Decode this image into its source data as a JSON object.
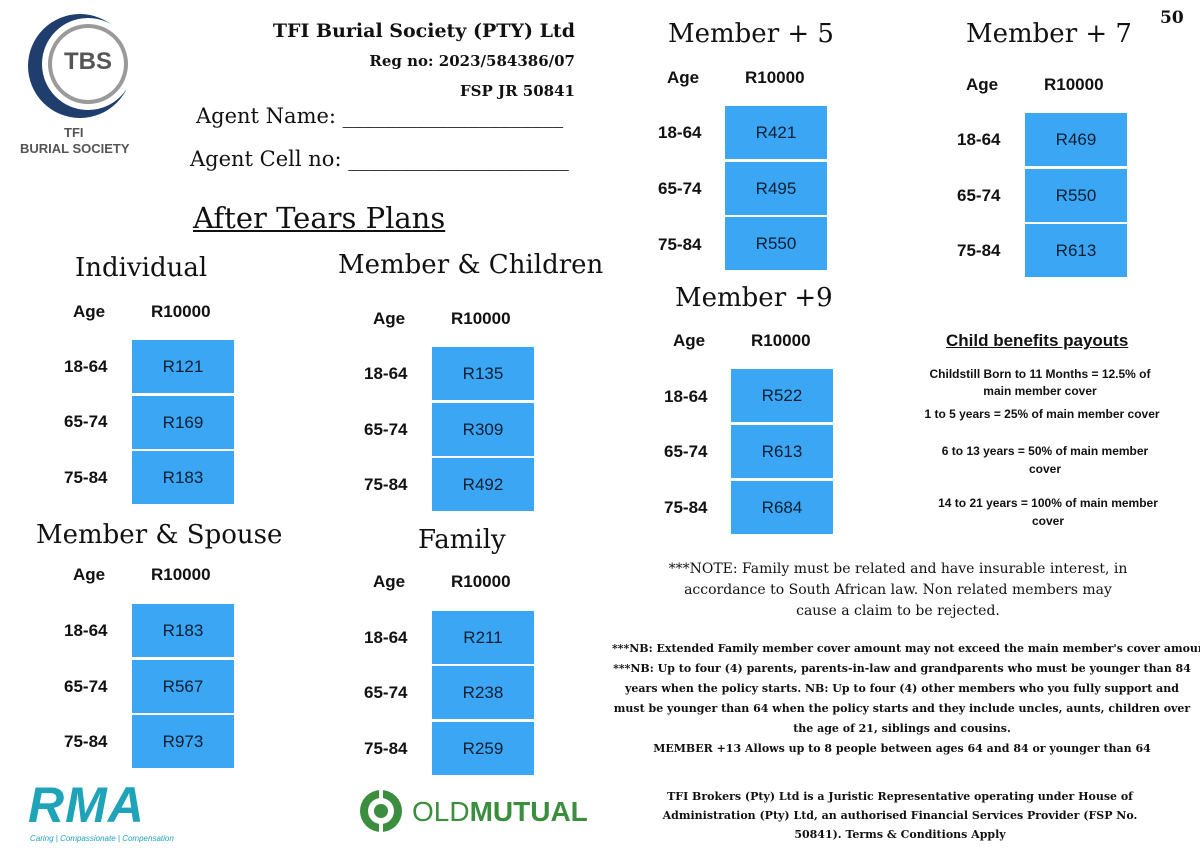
{
  "page_number": "50",
  "logo": {
    "initials": "TBS",
    "line1": "TFI",
    "line2": "BURIAL SOCIETY"
  },
  "header": {
    "company": "TFI Burial Society (PTY) Ltd",
    "reg": "Reg no: 2023/584386/07",
    "fsp": "FSP JR 50841",
    "agent_name": "Agent Name: _____________________",
    "agent_cell": "Agent Cell no: _____________________"
  },
  "main_title": "After Tears Plans",
  "plans": {
    "individual": {
      "title": "Individual",
      "age_header": "Age",
      "amount_header": "R10000",
      "rows": [
        {
          "age": "18-64",
          "price": "R121"
        },
        {
          "age": "65-74",
          "price": "R169"
        },
        {
          "age": "75-84",
          "price": "R183"
        }
      ]
    },
    "member_children": {
      "title": "Member & Children",
      "age_header": "Age",
      "amount_header": "R10000",
      "rows": [
        {
          "age": "18-64",
          "price": "R135"
        },
        {
          "age": "65-74",
          "price": "R309"
        },
        {
          "age": "75-84",
          "price": "R492"
        }
      ]
    },
    "member_spouse": {
      "title": "Member & Spouse",
      "age_header": "Age",
      "amount_header": "R10000",
      "rows": [
        {
          "age": "18-64",
          "price": "R183"
        },
        {
          "age": "65-74",
          "price": "R567"
        },
        {
          "age": "75-84",
          "price": "R973"
        }
      ]
    },
    "family": {
      "title": "Family",
      "age_header": "Age",
      "amount_header": "R10000",
      "rows": [
        {
          "age": "18-64",
          "price": "R211"
        },
        {
          "age": "65-74",
          "price": "R238"
        },
        {
          "age": "75-84",
          "price": "R259"
        }
      ]
    },
    "member_5": {
      "title": "Member + 5",
      "age_header": "Age",
      "amount_header": "R10000",
      "rows": [
        {
          "age": "18-64",
          "price": "R421"
        },
        {
          "age": "65-74",
          "price": "R495"
        },
        {
          "age": "75-84",
          "price": "R550"
        }
      ]
    },
    "member_7": {
      "title": "Member + 7",
      "age_header": "Age",
      "amount_header": "R10000",
      "rows": [
        {
          "age": "18-64",
          "price": "R469"
        },
        {
          "age": "65-74",
          "price": "R550"
        },
        {
          "age": "75-84",
          "price": "R613"
        }
      ]
    },
    "member_9": {
      "title": "Member +9",
      "age_header": "Age",
      "amount_header": "R10000",
      "rows": [
        {
          "age": "18-64",
          "price": "R522"
        },
        {
          "age": "65-74",
          "price": "R613"
        },
        {
          "age": "75-84",
          "price": "R684"
        }
      ]
    }
  },
  "child_benefits": {
    "title": "Child benefits payouts",
    "items": [
      "Childstill Born to 11 Months = 12.5% of main member cover",
      "1 to 5 years = 25% of main member cover",
      "6 to 13 years = 50% of main member cover",
      "14 to 21 years = 100% of main member cover"
    ]
  },
  "note": "***NOTE: Family must be related and have insurable interest, in accordance to South African law. Non related members may cause a claim to be rejected.",
  "nb_lines": [
    "***NB: Extended Family member cover amount may not exceed the main member's cover amount.",
    "***NB: Up to four (4) parents, parents-in-law and grandparents who must be younger than 84 years when the policy starts. NB: Up to four (4) other members who you fully support and must be younger than 64 when the policy starts and they include uncles, aunts, children over the age of 21, siblings and cousins.",
    "MEMBER +13 Allows up to 8 people between ages 64 and 84 or younger than 64"
  ],
  "footer": "TFI Brokers (Pty) Ltd is a Juristic Representative operating under House of Administration (Pty) Ltd, an authorised Financial Services Provider (FSP No. 50841). Terms & Conditions Apply",
  "rma": {
    "name": "RMA",
    "tagline": "Caring | Compassionate | Compensation"
  },
  "old_mutual": {
    "part1": "OLD",
    "part2": "MUTUAL"
  },
  "colors": {
    "cell_blue": "#3aa6f4",
    "rma_teal": "#1fa3b8",
    "om_green": "#3c8e3f",
    "logo_navy": "#1f3e6e"
  }
}
